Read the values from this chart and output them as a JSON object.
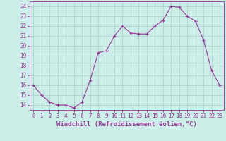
{
  "x": [
    0,
    1,
    2,
    3,
    4,
    5,
    6,
    7,
    8,
    9,
    10,
    11,
    12,
    13,
    14,
    15,
    16,
    17,
    18,
    19,
    20,
    21,
    22,
    23
  ],
  "y": [
    16,
    15,
    14.3,
    14,
    14,
    13.7,
    14.3,
    16.5,
    19.3,
    19.5,
    21.0,
    22.0,
    21.3,
    21.2,
    21.2,
    22.0,
    22.6,
    24.0,
    23.9,
    23.0,
    22.5,
    20.6,
    17.5,
    16.0
  ],
  "line_color": "#993399",
  "marker": "+",
  "background_color": "#cceee8",
  "grid_color": "#aacccc",
  "xlabel": "Windchill (Refroidissement éolien,°C)",
  "xlabel_color": "#993399",
  "tick_color": "#993399",
  "ylim": [
    13.5,
    24.5
  ],
  "xlim": [
    -0.5,
    23.5
  ],
  "yticks": [
    14,
    15,
    16,
    17,
    18,
    19,
    20,
    21,
    22,
    23,
    24
  ],
  "xticks": [
    0,
    1,
    2,
    3,
    4,
    5,
    6,
    7,
    8,
    9,
    10,
    11,
    12,
    13,
    14,
    15,
    16,
    17,
    18,
    19,
    20,
    21,
    22,
    23
  ],
  "figsize": [
    3.2,
    2.0
  ],
  "dpi": 100
}
